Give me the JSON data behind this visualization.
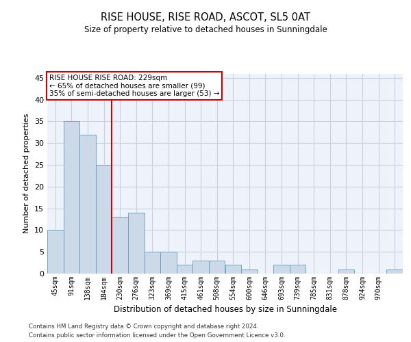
{
  "title": "RISE HOUSE, RISE ROAD, ASCOT, SL5 0AT",
  "subtitle": "Size of property relative to detached houses in Sunningdale",
  "xlabel": "Distribution of detached houses by size in Sunningdale",
  "ylabel": "Number of detached properties",
  "bar_values": [
    10,
    35,
    32,
    25,
    13,
    14,
    5,
    5,
    2,
    3,
    3,
    2,
    1,
    0,
    2,
    2,
    0,
    0,
    1,
    0,
    0,
    1
  ],
  "bar_labels": [
    "45sqm",
    "91sqm",
    "138sqm",
    "184sqm",
    "230sqm",
    "276sqm",
    "323sqm",
    "369sqm",
    "415sqm",
    "461sqm",
    "508sqm",
    "554sqm",
    "600sqm",
    "646sqm",
    "693sqm",
    "739sqm",
    "785sqm",
    "831sqm",
    "878sqm",
    "924sqm",
    "970sqm",
    ""
  ],
  "bar_color": "#ccd9e8",
  "bar_edge_color": "#6699bb",
  "grid_color": "#c8d0dc",
  "bg_color": "#eef2fa",
  "red_line_index": 4,
  "annotation_text": "RISE HOUSE RISE ROAD: 229sqm\n← 65% of detached houses are smaller (99)\n35% of semi-detached houses are larger (53) →",
  "annotation_box_color": "#ffffff",
  "annotation_box_edge": "#cc0000",
  "red_line_color": "#cc0000",
  "ylim": [
    0,
    46
  ],
  "yticks": [
    0,
    5,
    10,
    15,
    20,
    25,
    30,
    35,
    40,
    45
  ],
  "footer_line1": "Contains HM Land Registry data © Crown copyright and database right 2024.",
  "footer_line2": "Contains public sector information licensed under the Open Government Licence v3.0."
}
